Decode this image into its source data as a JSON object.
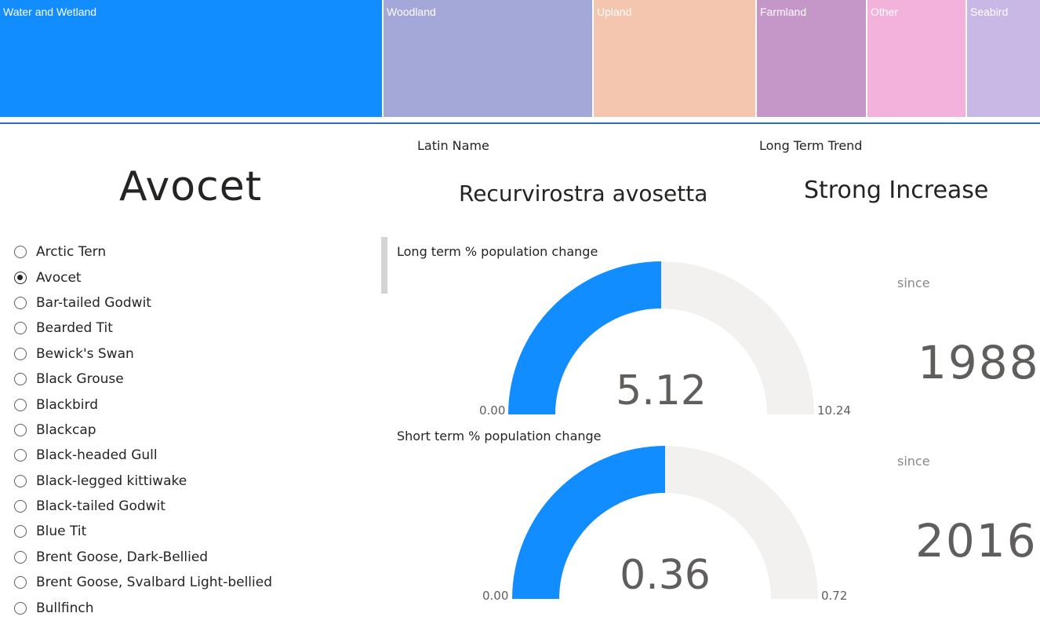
{
  "treemap": {
    "tiles": [
      {
        "label": "Water and Wetland",
        "color": "#118dff"
      },
      {
        "label": "Woodland",
        "color": "#a3a8d8"
      },
      {
        "label": "Upland",
        "color": "#f4c5af"
      },
      {
        "label": "Farmland",
        "color": "#c497c8"
      },
      {
        "label": "Other",
        "color": "#f2b2dc"
      },
      {
        "label": "Seabird",
        "color": "#c9b7e6"
      }
    ]
  },
  "species": {
    "name": "Avocet",
    "latin_label": "Latin Name",
    "latin_value": "Recurvirostra avosetta",
    "trend_label": "Long Term Trend",
    "trend_value": "Strong Increase"
  },
  "slicer": {
    "items": [
      {
        "label": "Arctic Tern",
        "selected": false
      },
      {
        "label": "Avocet",
        "selected": true
      },
      {
        "label": "Bar-tailed Godwit",
        "selected": false
      },
      {
        "label": "Bearded Tit",
        "selected": false
      },
      {
        "label": "Bewick's Swan",
        "selected": false
      },
      {
        "label": "Black Grouse",
        "selected": false
      },
      {
        "label": "Blackbird",
        "selected": false
      },
      {
        "label": "Blackcap",
        "selected": false
      },
      {
        "label": "Black-headed Gull",
        "selected": false
      },
      {
        "label": "Black-legged kittiwake",
        "selected": false
      },
      {
        "label": "Black-tailed Godwit",
        "selected": false
      },
      {
        "label": "Blue Tit",
        "selected": false
      },
      {
        "label": "Brent Goose, Dark-Bellied",
        "selected": false
      },
      {
        "label": "Brent Goose, Svalbard Light-bellied",
        "selected": false
      },
      {
        "label": "Bullfinch",
        "selected": false
      }
    ]
  },
  "gauges": {
    "long": {
      "title": "Long term % population change",
      "value": "5.12",
      "min": "0.00",
      "max": "10.24",
      "since_label": "since",
      "since_year": "1988"
    },
    "short": {
      "title": "Short term % population change",
      "value": "0.36",
      "min": "0.00",
      "max": "0.72",
      "since_label": "since",
      "since_year": "2016"
    }
  },
  "colors": {
    "gauge_fill": "#118dff",
    "gauge_track": "#f2f1ef"
  }
}
